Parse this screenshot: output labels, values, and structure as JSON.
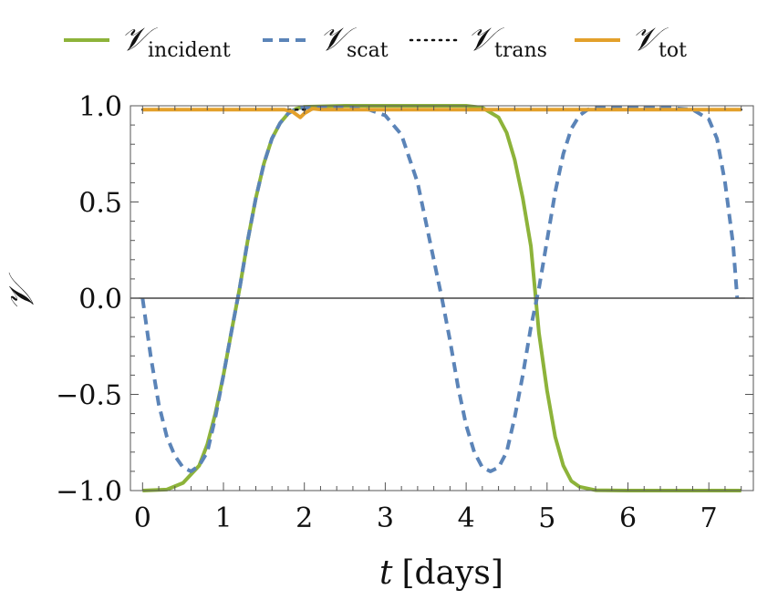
{
  "chart_data": {
    "type": "line",
    "title": "",
    "xlabel": {
      "var": "t",
      "unit": "[days]"
    },
    "ylabel": "𝒱",
    "xlim": [
      -0.15,
      7.55
    ],
    "ylim": [
      -1.0,
      1.0
    ],
    "x_ticks": [
      {
        "value": 0,
        "label": "0"
      },
      {
        "value": 1,
        "label": "1"
      },
      {
        "value": 2,
        "label": "2"
      },
      {
        "value": 3,
        "label": "3"
      },
      {
        "value": 4,
        "label": "4"
      },
      {
        "value": 5,
        "label": "5"
      },
      {
        "value": 6,
        "label": "6"
      },
      {
        "value": 7,
        "label": "7"
      }
    ],
    "y_ticks": [
      {
        "value": 1.0,
        "label": "1.0"
      },
      {
        "value": 0.5,
        "label": "0.5"
      },
      {
        "value": 0.0,
        "label": "0.0"
      },
      {
        "value": -0.5,
        "label": "−0.5"
      },
      {
        "value": -1.0,
        "label": "−1.0"
      }
    ],
    "legend_position": "top",
    "grid": false,
    "zero_line": true,
    "series": [
      {
        "name": "𝒱",
        "name_sub": "incident",
        "color": "#8db33a",
        "style": "solid",
        "x": [
          0,
          0.3,
          0.5,
          0.7,
          0.8,
          0.9,
          1.0,
          1.1,
          1.2,
          1.3,
          1.4,
          1.5,
          1.6,
          1.7,
          1.8,
          1.9,
          2.0,
          2.5,
          3.0,
          3.5,
          4.0,
          4.2,
          4.4,
          4.5,
          4.6,
          4.7,
          4.8,
          4.86,
          4.9,
          5.0,
          5.1,
          5.2,
          5.3,
          5.4,
          5.6,
          6.0,
          6.5,
          7.0,
          7.4
        ],
        "y": [
          -1.0,
          -0.995,
          -0.96,
          -0.87,
          -0.76,
          -0.6,
          -0.4,
          -0.17,
          0.05,
          0.3,
          0.52,
          0.7,
          0.83,
          0.91,
          0.96,
          0.985,
          0.995,
          1.0,
          1.0,
          1.0,
          1.0,
          0.99,
          0.94,
          0.86,
          0.72,
          0.52,
          0.27,
          0.0,
          -0.18,
          -0.48,
          -0.72,
          -0.87,
          -0.95,
          -0.98,
          -0.998,
          -1.0,
          -1.0,
          -1.0,
          -1.0
        ]
      },
      {
        "name": "𝒱",
        "name_sub": "scat",
        "color": "#5b84b8",
        "style": "dashed",
        "x": [
          0,
          0.1,
          0.2,
          0.3,
          0.4,
          0.5,
          0.6,
          0.7,
          0.8,
          0.9,
          1.0,
          1.1,
          1.2,
          1.3,
          1.4,
          1.5,
          1.6,
          1.7,
          1.8,
          1.9,
          2.0,
          2.5,
          2.8,
          3.0,
          3.2,
          3.4,
          3.6,
          3.7,
          3.8,
          3.9,
          4.0,
          4.1,
          4.2,
          4.3,
          4.4,
          4.5,
          4.6,
          4.7,
          4.8,
          4.9,
          5.0,
          5.1,
          5.2,
          5.3,
          5.4,
          5.5,
          5.6,
          5.8,
          6.0,
          6.5,
          6.8,
          7.0,
          7.1,
          7.2,
          7.3,
          7.35
        ],
        "y": [
          0.0,
          -0.3,
          -0.55,
          -0.72,
          -0.82,
          -0.88,
          -0.9,
          -0.87,
          -0.8,
          -0.62,
          -0.4,
          -0.17,
          0.05,
          0.3,
          0.52,
          0.7,
          0.83,
          0.91,
          0.96,
          0.985,
          0.99,
          0.99,
          0.98,
          0.95,
          0.85,
          0.6,
          0.2,
          0.0,
          -0.22,
          -0.46,
          -0.66,
          -0.8,
          -0.88,
          -0.9,
          -0.88,
          -0.8,
          -0.62,
          -0.4,
          -0.15,
          0.05,
          0.3,
          0.55,
          0.75,
          0.88,
          0.95,
          0.98,
          0.99,
          0.99,
          0.99,
          0.99,
          0.98,
          0.93,
          0.83,
          0.6,
          0.28,
          0.0
        ]
      },
      {
        "name": "𝒱",
        "name_sub": "trans",
        "color": "#111111",
        "style": "dotted",
        "x": [
          0,
          7.4
        ],
        "y": [
          0.98,
          0.98
        ]
      },
      {
        "name": "𝒱",
        "name_sub": "tot",
        "color": "#e3a02b",
        "style": "solid",
        "x": [
          0,
          1.75,
          1.85,
          1.9,
          1.95,
          2.0,
          2.1,
          2.2,
          7.4
        ],
        "y": [
          0.98,
          0.98,
          0.97,
          0.955,
          0.94,
          0.96,
          0.985,
          0.98,
          0.98
        ]
      }
    ]
  }
}
